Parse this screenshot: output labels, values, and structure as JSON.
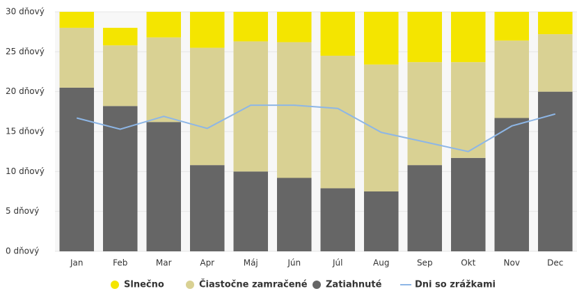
{
  "chart_data": {
    "type": "bar",
    "stacked": true,
    "categories": [
      "Jan",
      "Feb",
      "Mar",
      "Apr",
      "Máj",
      "Jún",
      "Júl",
      "Aug",
      "Sep",
      "Okt",
      "Nov",
      "Dec"
    ],
    "series": [
      {
        "name": "Slnečno",
        "color": "#f4e500",
        "type": "bar",
        "values": [
          3.0,
          2.2,
          4.2,
          4.5,
          4.7,
          3.8,
          6.5,
          7.6,
          6.3,
          7.3,
          3.6,
          3.8
        ]
      },
      {
        "name": "Čiastočne zamračené",
        "color": "#d9d193",
        "type": "bar",
        "values": [
          7.5,
          7.6,
          10.6,
          14.7,
          16.3,
          17.0,
          16.6,
          15.9,
          12.9,
          12.0,
          9.7,
          7.2
        ]
      },
      {
        "name": "Zatiahnuté",
        "color": "#666666",
        "type": "bar",
        "values": [
          20.5,
          18.2,
          16.2,
          10.8,
          10.0,
          9.2,
          7.9,
          7.5,
          10.8,
          11.7,
          16.7,
          20.0
        ]
      },
      {
        "name": "Dni so zrážkami",
        "color": "#8db6e6",
        "type": "line",
        "values": [
          16.7,
          15.3,
          16.9,
          15.4,
          18.3,
          18.3,
          17.9,
          14.9,
          13.7,
          12.5,
          15.7,
          17.2
        ]
      }
    ],
    "ylim": [
      0,
      30
    ],
    "yticks": [
      {
        "value": 0,
        "label": "0 dňový"
      },
      {
        "value": 5,
        "label": "5 dňový"
      },
      {
        "value": 10,
        "label": "10 dňový"
      },
      {
        "value": 15,
        "label": "15 dňový"
      },
      {
        "value": 20,
        "label": "20 dňový"
      },
      {
        "value": 25,
        "label": "25 dňový"
      },
      {
        "value": 30,
        "label": "30 dňový"
      }
    ],
    "grid": true,
    "legend": "bottom"
  }
}
